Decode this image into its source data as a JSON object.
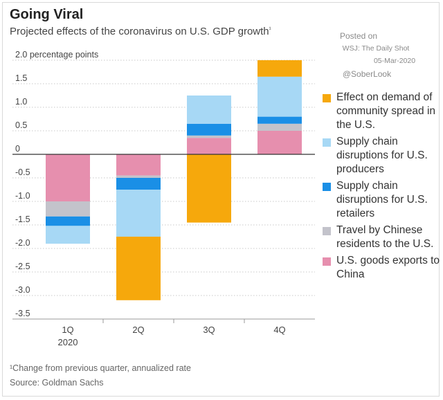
{
  "header": {
    "title": "Going Viral",
    "subtitle": "Projected effects of the coronavirus on U.S. GDP growth",
    "subtitle_mark": "¹"
  },
  "credit": {
    "posted_on": "Posted on",
    "publication": "WSJ: The Daily Shot",
    "date": "05-Mar-2020",
    "handle": "@SoberLook"
  },
  "footer": {
    "footnote": "¹Change from previous quarter, annualized rate",
    "source": "Source: Goldman Sachs"
  },
  "chart_data": {
    "type": "bar",
    "stacked": true,
    "title": "Going Viral",
    "subtitle": "Projected effects of the coronavirus on U.S. GDP growth",
    "xlabel": "",
    "ylabel": "percentage points",
    "ylim": [
      -3.5,
      2.0
    ],
    "y_ticks": [
      {
        "value": 2.0,
        "label": "2.0 percentage points"
      },
      {
        "value": 1.5,
        "label": "1.5"
      },
      {
        "value": 1.0,
        "label": "1.0"
      },
      {
        "value": 0.5,
        "label": "0.5"
      },
      {
        "value": 0,
        "label": "0"
      },
      {
        "value": -0.5,
        "label": "-0.5"
      },
      {
        "value": -1.0,
        "label": "-1.0"
      },
      {
        "value": -1.5,
        "label": "-1.5"
      },
      {
        "value": -2.0,
        "label": "-2.0"
      },
      {
        "value": -2.5,
        "label": "-2.5"
      },
      {
        "value": -3.0,
        "label": "-3.0"
      },
      {
        "value": -3.5,
        "label": "-3.5"
      }
    ],
    "categories": [
      "1Q",
      "2Q",
      "3Q",
      "4Q"
    ],
    "category_sublabels": [
      "2020",
      "",
      "",
      ""
    ],
    "grid": true,
    "legend_position": "right",
    "series": [
      {
        "name": "U.S. goods exports to China",
        "color": "#e68fae",
        "values": [
          -1.0,
          -0.45,
          0.35,
          0.5
        ]
      },
      {
        "name": "Travel by Chinese residents to the U.S.",
        "color": "#c3c3cb",
        "values": [
          -0.32,
          -0.05,
          0.05,
          0.15
        ]
      },
      {
        "name": "Supply chain disruptions for U.S. retailers",
        "color": "#1a8fe6",
        "values": [
          -0.2,
          -0.25,
          0.25,
          0.15
        ]
      },
      {
        "name": "Supply chain disruptions for U.S. producers",
        "color": "#a7d8f5",
        "values": [
          -0.38,
          -1.0,
          0.6,
          0.85
        ]
      },
      {
        "name": "Effect on demand of community spread in the U.S.",
        "color": "#f6a80c",
        "values": [
          0,
          -1.35,
          -1.45,
          0.35
        ]
      }
    ]
  },
  "legend": {
    "items": [
      {
        "label": "Effect on demand of community spread in the U.S.",
        "color": "#f6a80c"
      },
      {
        "label": "Supply chain disruptions for U.S. producers",
        "color": "#a7d8f5"
      },
      {
        "label": "Supply chain disruptions for U.S. retailers",
        "color": "#1a8fe6"
      },
      {
        "label": "Travel by Chinese residents to the U.S.",
        "color": "#c3c3cb"
      },
      {
        "label": "U.S. goods exports to China",
        "color": "#e68fae"
      }
    ]
  }
}
